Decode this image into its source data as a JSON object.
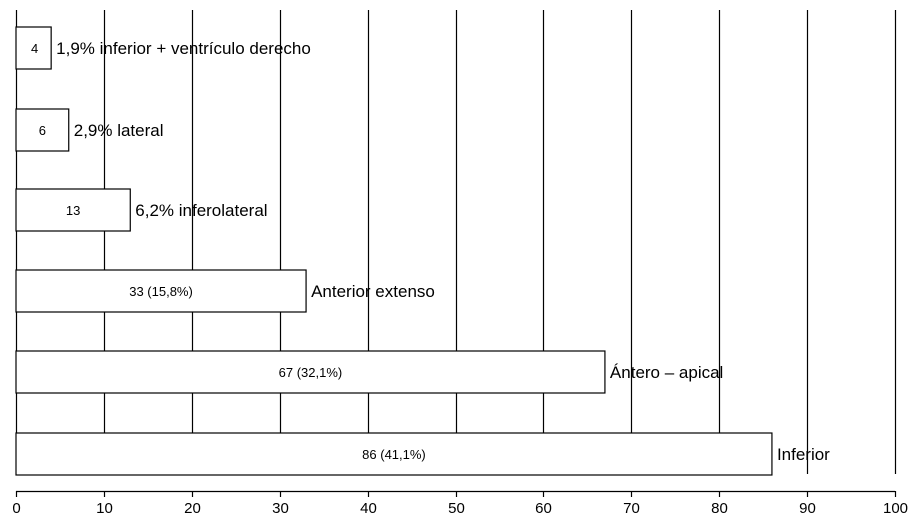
{
  "chart_data": {
    "type": "bar",
    "orientation": "horizontal",
    "title": "",
    "xlabel": "",
    "ylabel": "",
    "xlim": [
      0,
      100
    ],
    "x_ticks": [
      0,
      10,
      20,
      30,
      40,
      50,
      60,
      70,
      80,
      90,
      100
    ],
    "grid": "vertical",
    "bar_fill": "#ffffff",
    "bar_stroke": "#000000",
    "categories": [
      "1,9% inferior + ventrículo derecho",
      "2,9% lateral",
      "6,2% inferolateral",
      "Anterior extenso",
      "Ántero – apical",
      "Inferior"
    ],
    "values": [
      4,
      6,
      13,
      33,
      67,
      86
    ],
    "data_labels": [
      "4",
      "6",
      "13",
      "33 (15,8%)",
      "67 (32,1%)",
      "86 (41,1%)"
    ]
  }
}
